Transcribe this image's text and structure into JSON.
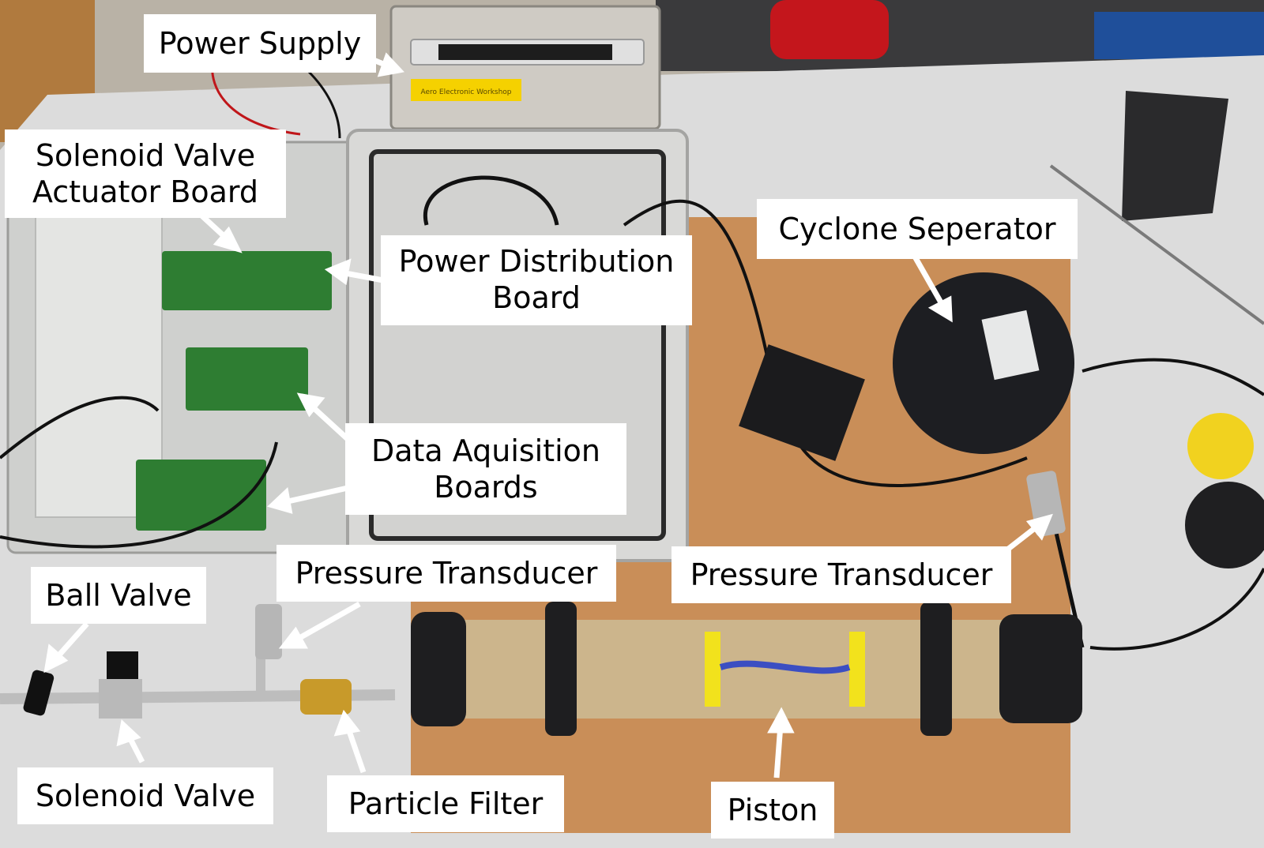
{
  "labels": {
    "power_supply": "Power Supply",
    "solenoid_valve_actuator_board": "Solenoid Valve\nActuator Board",
    "power_distribution_board": "Power Distribution\nBoard",
    "cyclone_separator": "Cyclone Seperator",
    "data_acquisition_boards": "Data Aquisition\nBoards",
    "pressure_transducer_left": "Pressure Transducer",
    "pressure_transducer_right": "Pressure Transducer",
    "ball_valve": "Ball Valve",
    "solenoid_valve": "Solenoid Valve",
    "particle_filter": "Particle Filter",
    "piston": "Piston"
  },
  "device_text": {
    "power_supply_tag": "Aero Electronic Workshop"
  },
  "colors": {
    "bench": "#dcdcdc",
    "wood_board": "#c98e58",
    "enclosure": "#d9d9d7",
    "pcb": "#2e7d32",
    "label_background": "#ffffff",
    "arrow": "#ffffff",
    "piston_band": "#f2e21c"
  }
}
